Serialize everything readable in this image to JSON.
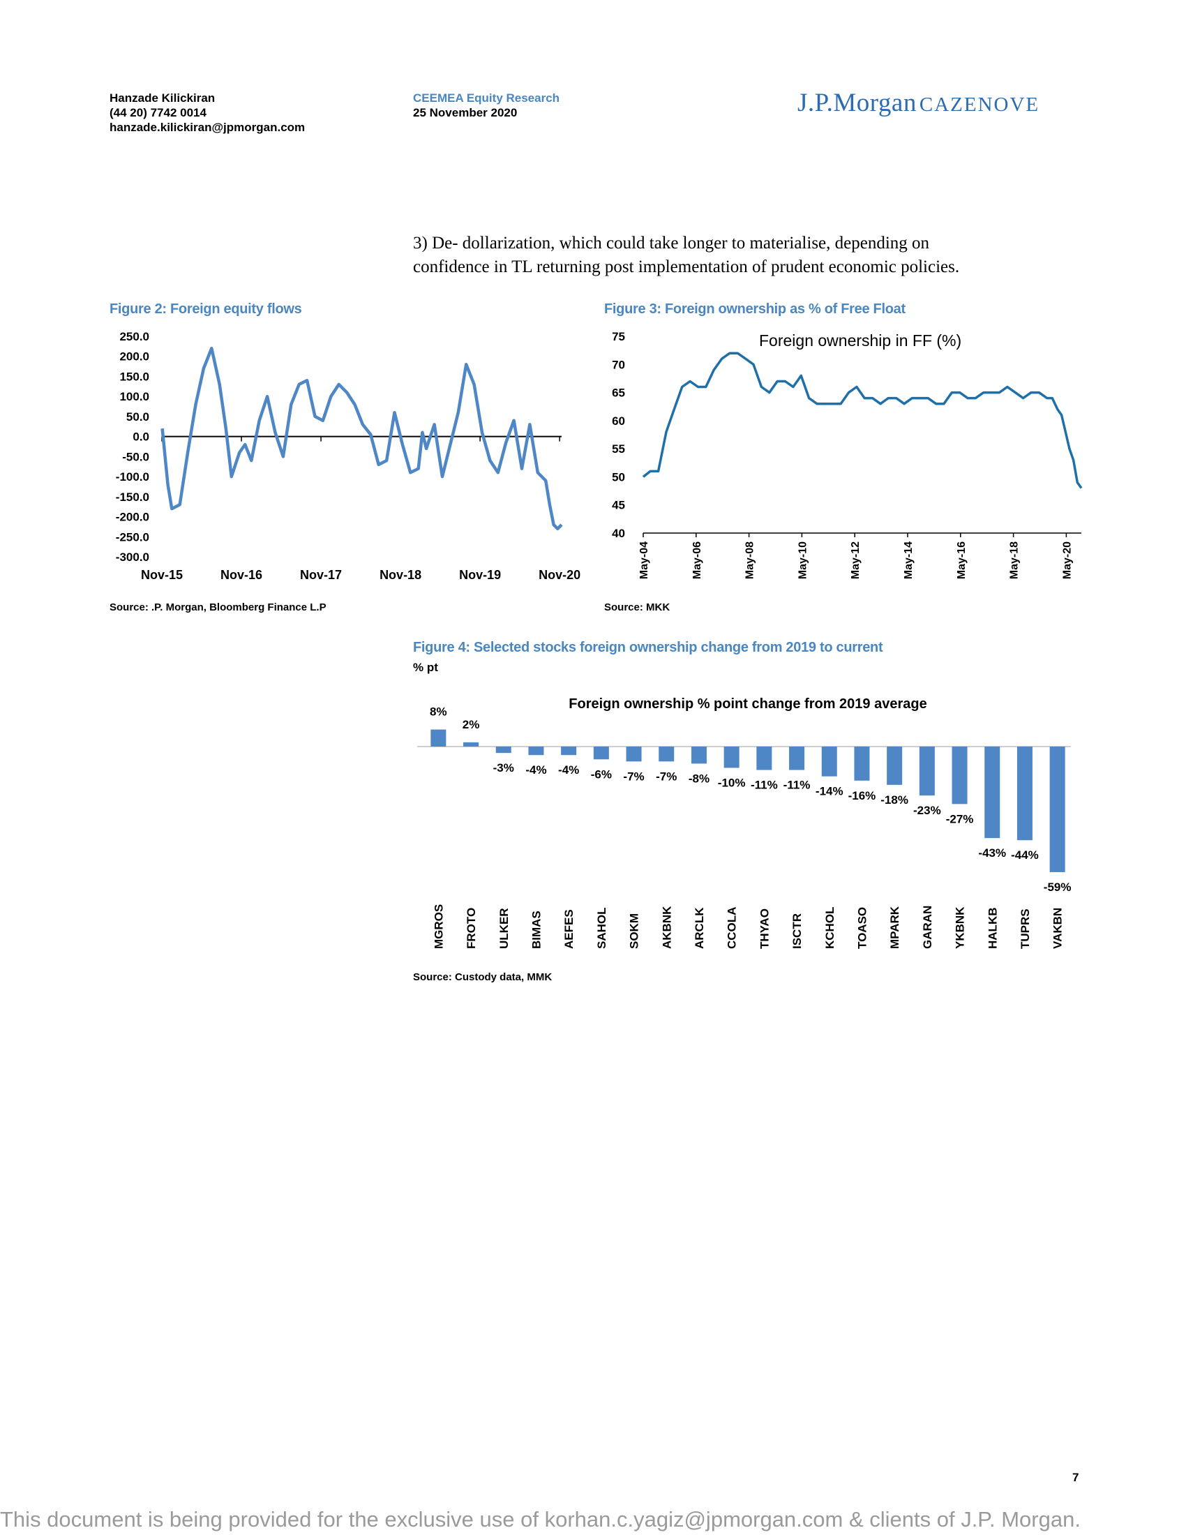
{
  "header": {
    "author_name": "Hanzade Kilickiran",
    "author_phone": "(44 20) 7742 0014",
    "author_email": "hanzade.kilickiran@jpmorgan.com",
    "department": "CEEMEA Equity Research",
    "date": "25 November 2020",
    "logo_main": "J.P.Morgan",
    "logo_sub": "CAZENOVE"
  },
  "body": {
    "point3_line1": "3)  De- dollarization, which could take longer to materialise, depending on",
    "point3_line2": "confidence in TL returning post implementation of prudent economic policies."
  },
  "figure2": {
    "title": "Figure 2: Foreign equity flows",
    "source": "Source: .P. Morgan, Bloomberg Finance L.P"
  },
  "figure3": {
    "title": "Figure 3: Foreign ownership as % of Free Float",
    "source": "Source: MKK"
  },
  "figure4": {
    "title": "Figure 4: Selected stocks foreign ownership change from 2019 to current",
    "unit": "% pt",
    "source": "Source: Custody data, MMK"
  },
  "page_number": "7",
  "footer": "This document is being provided for the exclusive use of korhan.c.yagiz@jpmorgan.com & clients of J.P. Morgan.",
  "colors": {
    "accent": "#4a86c0",
    "series_light": "#4f86c6",
    "series_dark": "#1f6fa8",
    "bar": "#4f86c6"
  },
  "chart_data": [
    {
      "id": "figure2",
      "type": "line",
      "title": "",
      "xlabel": "",
      "ylabel": "",
      "ylim": [
        -300,
        250
      ],
      "y_ticks": [
        "250.0",
        "200.0",
        "150.0",
        "100.0",
        "50.0",
        "0.0",
        "-50.0",
        "-100.0",
        "-150.0",
        "-200.0",
        "-250.0",
        "-300.0"
      ],
      "x_ticks": [
        "Nov-15",
        "Nov-16",
        "Nov-17",
        "Nov-18",
        "Nov-19",
        "Nov-20"
      ],
      "x_tick_years": [
        2015.875,
        2016.875,
        2017.875,
        2018.875,
        2019.875,
        2020.875
      ],
      "x_range": [
        2015.875,
        2020.9
      ],
      "grid": false,
      "zero_line": true,
      "series": [
        {
          "x": [
            2015.88,
            2015.95,
            2016.0,
            2016.1,
            2016.2,
            2016.3,
            2016.4,
            2016.5,
            2016.6,
            2016.68,
            2016.75,
            2016.85,
            2016.92,
            2017.0,
            2017.1,
            2017.2,
            2017.3,
            2017.4,
            2017.5,
            2017.6,
            2017.7,
            2017.8,
            2017.9,
            2018.0,
            2018.1,
            2018.2,
            2018.3,
            2018.4,
            2018.5,
            2018.6,
            2018.7,
            2018.8,
            2018.9,
            2019.0,
            2019.1,
            2019.15,
            2019.2,
            2019.3,
            2019.4,
            2019.5,
            2019.6,
            2019.7,
            2019.8,
            2019.9,
            2020.0,
            2020.1,
            2020.2,
            2020.3,
            2020.4,
            2020.5,
            2020.6,
            2020.7,
            2020.75,
            2020.8,
            2020.85,
            2020.9
          ],
          "y": [
            20,
            -120,
            -180,
            -170,
            -40,
            80,
            170,
            220,
            130,
            20,
            -100,
            -40,
            -20,
            -60,
            40,
            100,
            10,
            -50,
            80,
            130,
            140,
            50,
            40,
            100,
            130,
            110,
            80,
            30,
            5,
            -70,
            -60,
            60,
            -20,
            -90,
            -80,
            10,
            -30,
            30,
            -100,
            -20,
            60,
            180,
            130,
            10,
            -60,
            -90,
            -15,
            40,
            -80,
            30,
            -90,
            -110,
            -170,
            -220,
            -230,
            -220
          ]
        }
      ]
    },
    {
      "id": "figure3",
      "type": "line",
      "title": "",
      "xlabel": "",
      "ylabel": "",
      "ylim": [
        40,
        75
      ],
      "y_ticks": [
        75,
        70,
        65,
        60,
        55,
        50,
        45,
        40
      ],
      "x_ticks": [
        "May-04",
        "May-06",
        "May-08",
        "May-10",
        "May-12",
        "May-14",
        "May-16",
        "May-18",
        "May-20"
      ],
      "x_tick_years": [
        2004.33,
        2006.33,
        2008.33,
        2010.33,
        2012.33,
        2014.33,
        2016.33,
        2018.33,
        2020.33
      ],
      "x_range": [
        2004.33,
        2020.9
      ],
      "grid": false,
      "legend": "top",
      "series": [
        {
          "name": "Foreign ownership in FF (%)",
          "x": [
            2004.33,
            2004.6,
            2004.9,
            2005.2,
            2005.5,
            2005.8,
            2006.1,
            2006.4,
            2006.7,
            2007.0,
            2007.3,
            2007.6,
            2007.9,
            2008.2,
            2008.5,
            2008.8,
            2009.1,
            2009.4,
            2009.7,
            2010.0,
            2010.3,
            2010.6,
            2010.9,
            2011.2,
            2011.5,
            2011.8,
            2012.1,
            2012.4,
            2012.7,
            2013.0,
            2013.3,
            2013.6,
            2013.9,
            2014.2,
            2014.5,
            2014.8,
            2015.1,
            2015.4,
            2015.7,
            2016.0,
            2016.3,
            2016.6,
            2016.9,
            2017.2,
            2017.5,
            2017.8,
            2018.1,
            2018.4,
            2018.7,
            2019.0,
            2019.3,
            2019.6,
            2019.8,
            2020.0,
            2020.15,
            2020.3,
            2020.45,
            2020.6,
            2020.75,
            2020.9
          ],
          "y": [
            50,
            51,
            51,
            58,
            62,
            66,
            67,
            66,
            66,
            69,
            71,
            72,
            72,
            71,
            70,
            66,
            65,
            67,
            67,
            66,
            68,
            64,
            63,
            63,
            63,
            63,
            65,
            66,
            64,
            64,
            63,
            64,
            64,
            63,
            64,
            64,
            64,
            63,
            63,
            65,
            65,
            64,
            64,
            65,
            65,
            65,
            66,
            65,
            64,
            65,
            65,
            64,
            64,
            62,
            61,
            58,
            55,
            53,
            49,
            48
          ]
        }
      ]
    },
    {
      "id": "figure4",
      "type": "bar",
      "title": "Foreign ownership % point change from 2019 average",
      "xlabel": "",
      "ylabel": "% pt",
      "ylim": [
        -62,
        10
      ],
      "categories": [
        "MGROS",
        "FROTO",
        "ULKER",
        "BIMAS",
        "AEFES",
        "SAHOL",
        "SOKM",
        "AKBNK",
        "ARCLK",
        "CCOLA",
        "THYAO",
        "ISCTR",
        "KCHOL",
        "TOASO",
        "MPARK",
        "GARAN",
        "YKBNK",
        "HALKB",
        "TUPRS",
        "VAKBN"
      ],
      "values": [
        8,
        2,
        -3,
        -4,
        -4,
        -6,
        -7,
        -7,
        -8,
        -10,
        -11,
        -11,
        -14,
        -16,
        -18,
        -23,
        -27,
        -43,
        -44,
        -59
      ],
      "data_labels": [
        "8%",
        "2%",
        "-3%",
        "-4%",
        "-4%",
        "-6%",
        "-7%",
        "-7%",
        "-8%",
        "-10%",
        "-11%",
        "-11%",
        "-14%",
        "-16%",
        "-18%",
        "-23%",
        "-27%",
        "-43%",
        "-44%",
        "-59%"
      ]
    }
  ]
}
